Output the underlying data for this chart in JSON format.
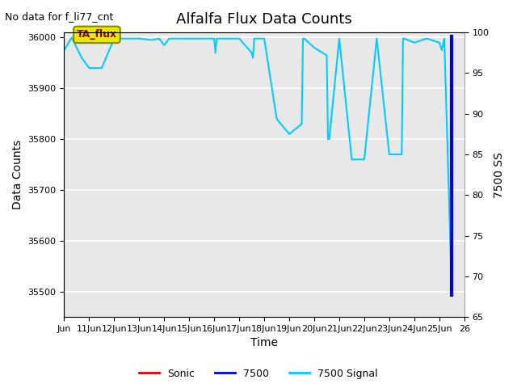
{
  "title": "Alfalfa Flux Data Counts",
  "subtitle": "No data for f_li77_cnt",
  "xlabel": "Time",
  "ylabel": "Data Counts",
  "ylabel_right": "7500 SS",
  "ylim_left": [
    35450,
    36010
  ],
  "ylim_right": [
    65,
    100
  ],
  "annotation_text": "TA_flux",
  "bg_color": "#e8e8e8",
  "x_tick_labels": [
    "Jun",
    "11Jun",
    "12Jun",
    "13Jun",
    "14Jun",
    "15Jun",
    "16Jun",
    "17Jun",
    "18Jun",
    "19Jun",
    "20Jun",
    "21Jun",
    "22Jun",
    "23Jun",
    "24Jun",
    "25Jun",
    "26"
  ],
  "signal_x": [
    0.0,
    0.3,
    0.7,
    1.0,
    1.5,
    2.0,
    2.5,
    3.0,
    3.5,
    3.8,
    4.0,
    4.2,
    4.5,
    5.0,
    5.5,
    6.0,
    6.05,
    6.1,
    6.5,
    7.0,
    7.5,
    7.55,
    7.6,
    8.0,
    8.5,
    9.0,
    9.5,
    9.55,
    9.6,
    10.0,
    10.5,
    10.55,
    10.6,
    11.0,
    11.5,
    12.0,
    12.5,
    13.0,
    13.5,
    13.55,
    13.6,
    14.0,
    14.5,
    15.0,
    15.1,
    15.2,
    15.5
  ],
  "signal_y": [
    35975,
    36000,
    35960,
    35940,
    35940,
    35998,
    35998,
    35998,
    35995,
    35998,
    35985,
    35998,
    35998,
    35998,
    35998,
    35998,
    35970,
    35998,
    35998,
    35998,
    35970,
    35960,
    35998,
    35998,
    35840,
    35810,
    35830,
    35998,
    35998,
    35980,
    35965,
    35800,
    35800,
    35998,
    35760,
    35760,
    35998,
    35770,
    35770,
    35998,
    35998,
    35990,
    35998,
    35990,
    35975,
    35998,
    35500
  ],
  "blue_line_x": [
    15.5,
    15.5
  ],
  "blue_line_y": [
    35490,
    36005
  ],
  "legend_labels": [
    "Sonic",
    "7500",
    "7500 Signal"
  ],
  "legend_colors": [
    "#dd0000",
    "#0000dd",
    "#00ccff"
  ],
  "title_fontsize": 13,
  "subtitle_fontsize": 9,
  "ylabel_fontsize": 10,
  "tick_fontsize": 8
}
